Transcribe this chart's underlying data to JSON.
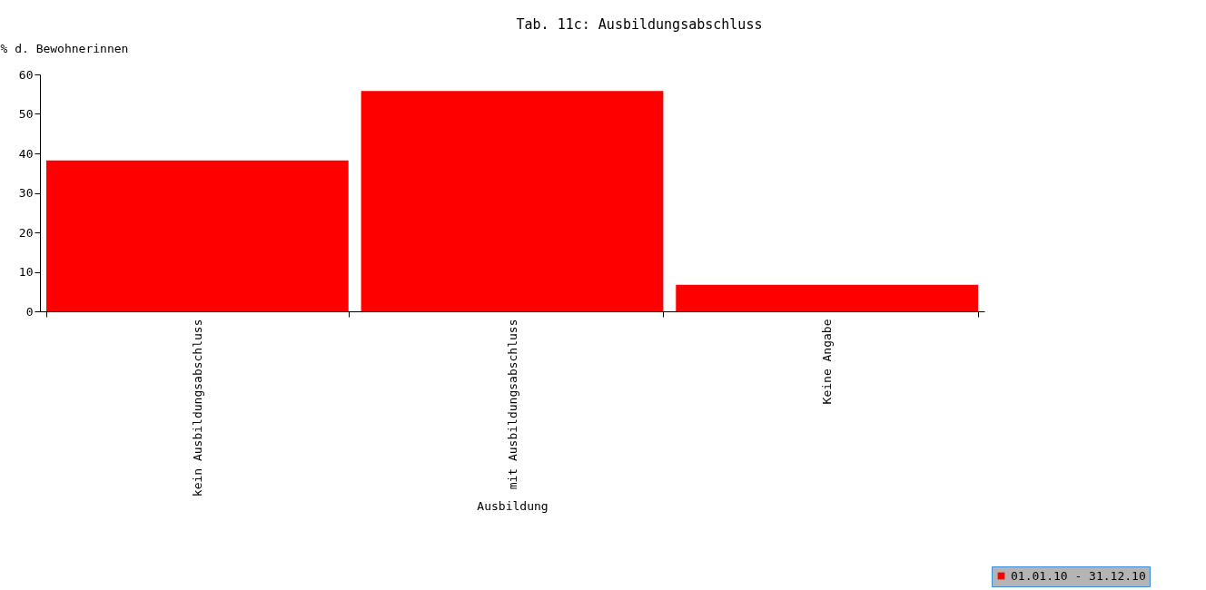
{
  "chart_data": {
    "type": "bar",
    "title": "Tab. 11c: Ausbildungsabschluss",
    "xlabel": "Ausbildung",
    "ylabel": "% d. Bewohnerinnen",
    "categories": [
      "kein Ausbildungsabschluss",
      "mit Ausbildungsabschluss",
      "Keine Angabe"
    ],
    "series": [
      {
        "name": "01.01.10 - 31.12.10",
        "color": "#ff0000",
        "values": [
          38.2,
          55.8,
          6.7
        ]
      }
    ],
    "ylim": [
      0,
      60
    ],
    "yticks": [
      0,
      10,
      20,
      30,
      40,
      50,
      60
    ],
    "grid": false,
    "legend": "bottom right"
  }
}
